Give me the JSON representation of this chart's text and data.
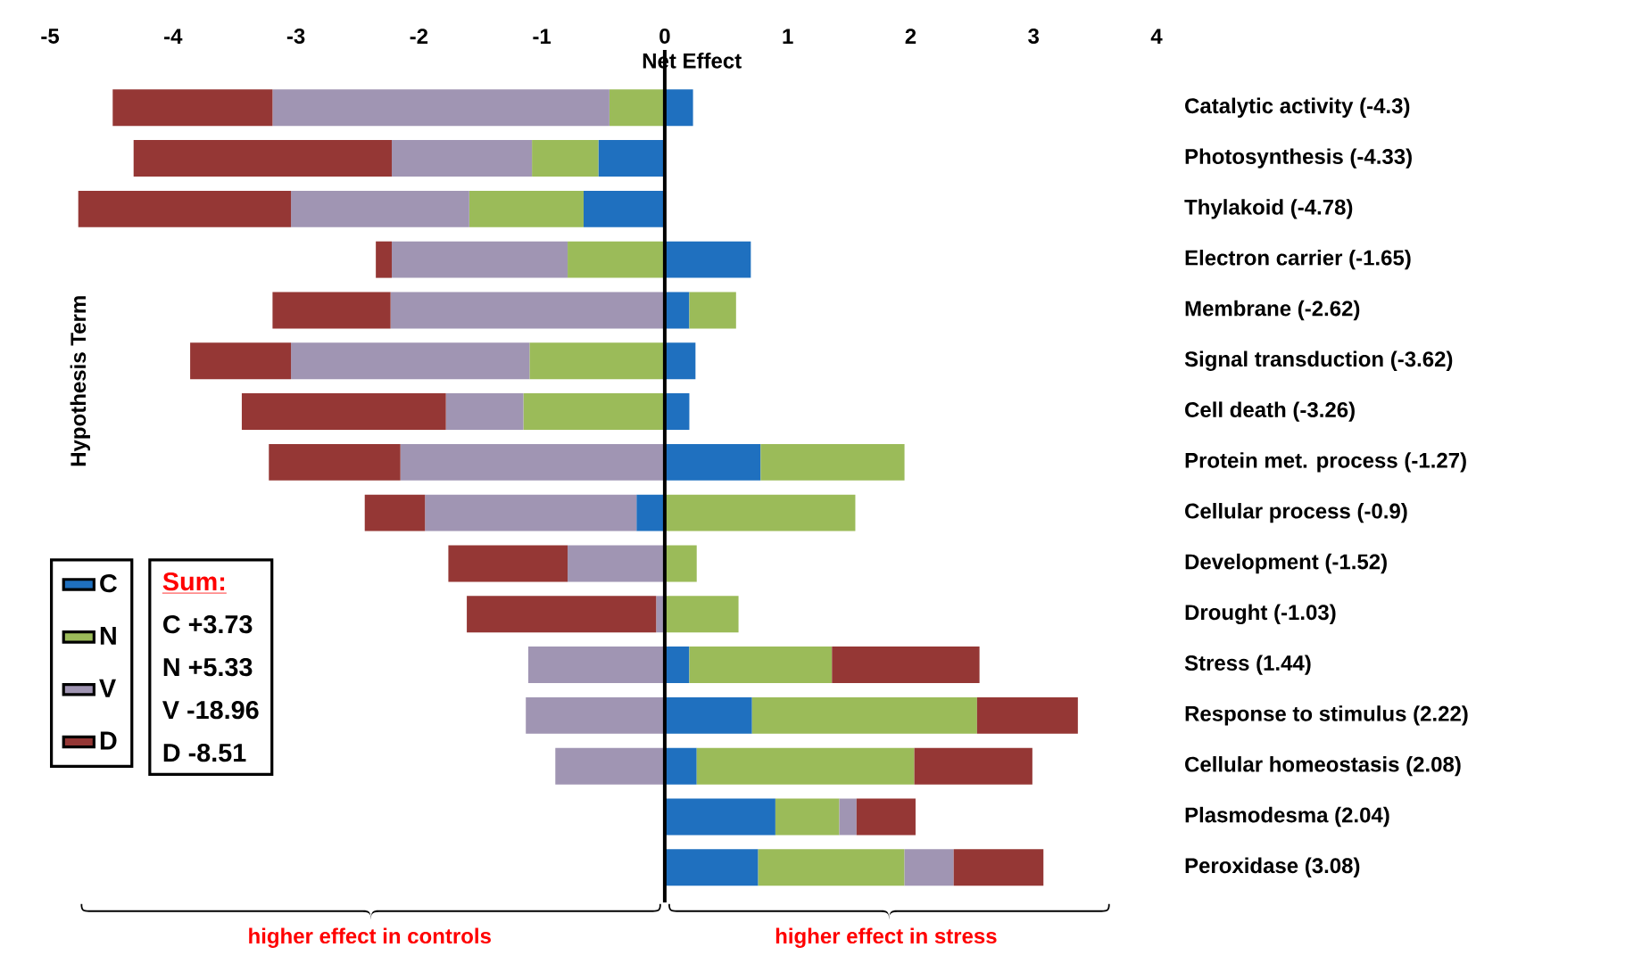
{
  "chart_data": {
    "type": "bar",
    "orientation": "horizontal",
    "stacked": true,
    "xlabel": "Net Effect",
    "ylabel": "Hypothesis Term",
    "categories": [
      "Catalytic activity (-4.3)",
      "Photosynthesis (-4.33)",
      "Thylakoid (-4.78)",
      "Electron carrier (-1.65)",
      "Membrane (-2.62)",
      "Signal transduction (-3.62)",
      "Cell death (-3.26)",
      "Protein met. process (-1.27)",
      "Cellular process (-0.9)",
      "Development (-1.52)",
      "Drought (-1.03)",
      "Stress (1.44)",
      "Response to stimulus (2.22)",
      "Cellular homeostasis (2.08)",
      "Plasmodesma (2.04)",
      "Peroxidase (3.08)"
    ],
    "series": [
      {
        "name": "C",
        "color": "#1f70bf",
        "values": [
          0.23,
          -0.54,
          -0.66,
          0.7,
          0.2,
          0.25,
          0.2,
          0.78,
          -0.23,
          null,
          null,
          0.2,
          0.71,
          0.26,
          0.9,
          0.76
        ]
      },
      {
        "name": "N",
        "color": "#9bbb59",
        "values": [
          -0.45,
          -0.54,
          -0.93,
          -0.79,
          0.38,
          -1.1,
          -1.15,
          1.17,
          1.55,
          0.26,
          0.6,
          1.16,
          1.83,
          1.77,
          0.52,
          1.19
        ]
      },
      {
        "name": "V",
        "color": "#a095b3",
        "values": [
          -2.74,
          -1.14,
          -1.45,
          -1.43,
          -2.23,
          -1.94,
          -0.63,
          -2.15,
          -1.72,
          -0.79,
          -0.07,
          -1.11,
          -1.13,
          -0.89,
          0.14,
          0.4
        ]
      },
      {
        "name": "D",
        "color": "#953735",
        "values": [
          -1.3,
          -2.1,
          -1.73,
          -0.13,
          -0.96,
          -0.82,
          -1.66,
          -1.07,
          -0.49,
          -0.97,
          -1.54,
          1.2,
          0.82,
          0.96,
          0.48,
          0.73
        ]
      }
    ],
    "xlim": [
      -5,
      4
    ],
    "xticks": [
      -5,
      -4,
      -3,
      -2,
      -1,
      0,
      1,
      2,
      3,
      4
    ],
    "grid": false,
    "legend": "bottom left",
    "ref_lines": [
      {
        "axis": "x",
        "value": 0,
        "color": "#000000"
      }
    ],
    "annotations": [
      "Sum:",
      "C +3.73",
      "N +5.33",
      "V -18.96",
      "D -8.51",
      "higher effect in controls",
      "higher effect in stress"
    ]
  }
}
